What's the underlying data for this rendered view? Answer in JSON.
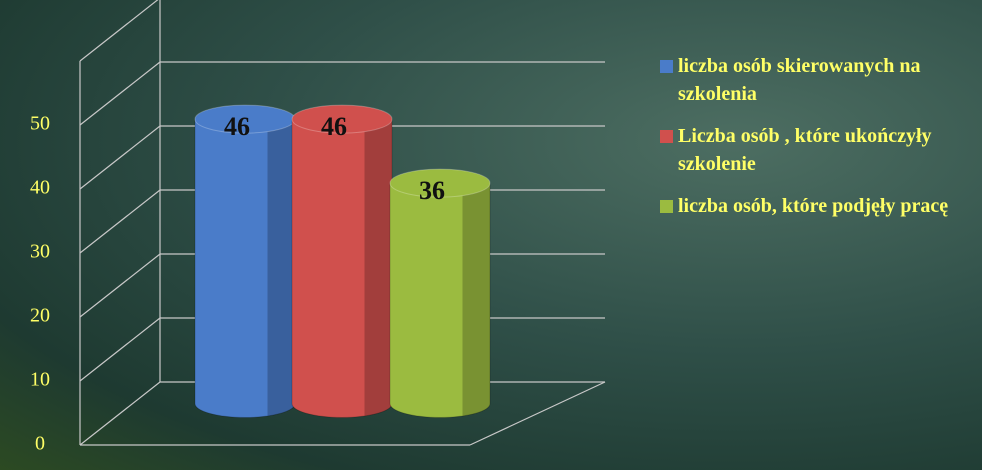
{
  "chart_data": {
    "type": "bar3d",
    "series": [
      {
        "name": "liczba osób skierowanych na szkolenia",
        "color": "#4a7cc9",
        "values": [
          46
        ]
      },
      {
        "name": "Liczba osób , które ukończyły szkolenie",
        "color": "#d0504d",
        "values": [
          46
        ]
      },
      {
        "name": "liczba osób, które podjęły pracę",
        "color": "#9bbb40",
        "values": [
          36
        ]
      }
    ],
    "ylim": [
      0,
      60
    ],
    "yticks": [
      0,
      10,
      20,
      30,
      40,
      50
    ],
    "grid": true,
    "legend": "right"
  }
}
